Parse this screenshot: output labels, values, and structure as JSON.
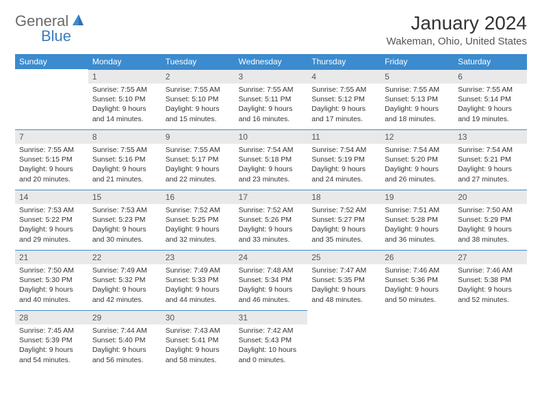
{
  "logo": {
    "general": "General",
    "blue": "Blue"
  },
  "title": "January 2024",
  "location": "Wakeman, Ohio, United States",
  "colors": {
    "header_bg": "#3b8bce",
    "header_text": "#ffffff",
    "daynum_bg": "#e9e9e9",
    "row_border": "#3b8bce",
    "text": "#333333",
    "logo_gray": "#6a6a6a",
    "logo_blue": "#3b7bbf"
  },
  "days_of_week": [
    "Sunday",
    "Monday",
    "Tuesday",
    "Wednesday",
    "Thursday",
    "Friday",
    "Saturday"
  ],
  "weeks": [
    [
      null,
      {
        "n": "1",
        "sr": "Sunrise: 7:55 AM",
        "ss": "Sunset: 5:10 PM",
        "dl": "Daylight: 9 hours and 14 minutes."
      },
      {
        "n": "2",
        "sr": "Sunrise: 7:55 AM",
        "ss": "Sunset: 5:10 PM",
        "dl": "Daylight: 9 hours and 15 minutes."
      },
      {
        "n": "3",
        "sr": "Sunrise: 7:55 AM",
        "ss": "Sunset: 5:11 PM",
        "dl": "Daylight: 9 hours and 16 minutes."
      },
      {
        "n": "4",
        "sr": "Sunrise: 7:55 AM",
        "ss": "Sunset: 5:12 PM",
        "dl": "Daylight: 9 hours and 17 minutes."
      },
      {
        "n": "5",
        "sr": "Sunrise: 7:55 AM",
        "ss": "Sunset: 5:13 PM",
        "dl": "Daylight: 9 hours and 18 minutes."
      },
      {
        "n": "6",
        "sr": "Sunrise: 7:55 AM",
        "ss": "Sunset: 5:14 PM",
        "dl": "Daylight: 9 hours and 19 minutes."
      }
    ],
    [
      {
        "n": "7",
        "sr": "Sunrise: 7:55 AM",
        "ss": "Sunset: 5:15 PM",
        "dl": "Daylight: 9 hours and 20 minutes."
      },
      {
        "n": "8",
        "sr": "Sunrise: 7:55 AM",
        "ss": "Sunset: 5:16 PM",
        "dl": "Daylight: 9 hours and 21 minutes."
      },
      {
        "n": "9",
        "sr": "Sunrise: 7:55 AM",
        "ss": "Sunset: 5:17 PM",
        "dl": "Daylight: 9 hours and 22 minutes."
      },
      {
        "n": "10",
        "sr": "Sunrise: 7:54 AM",
        "ss": "Sunset: 5:18 PM",
        "dl": "Daylight: 9 hours and 23 minutes."
      },
      {
        "n": "11",
        "sr": "Sunrise: 7:54 AM",
        "ss": "Sunset: 5:19 PM",
        "dl": "Daylight: 9 hours and 24 minutes."
      },
      {
        "n": "12",
        "sr": "Sunrise: 7:54 AM",
        "ss": "Sunset: 5:20 PM",
        "dl": "Daylight: 9 hours and 26 minutes."
      },
      {
        "n": "13",
        "sr": "Sunrise: 7:54 AM",
        "ss": "Sunset: 5:21 PM",
        "dl": "Daylight: 9 hours and 27 minutes."
      }
    ],
    [
      {
        "n": "14",
        "sr": "Sunrise: 7:53 AM",
        "ss": "Sunset: 5:22 PM",
        "dl": "Daylight: 9 hours and 29 minutes."
      },
      {
        "n": "15",
        "sr": "Sunrise: 7:53 AM",
        "ss": "Sunset: 5:23 PM",
        "dl": "Daylight: 9 hours and 30 minutes."
      },
      {
        "n": "16",
        "sr": "Sunrise: 7:52 AM",
        "ss": "Sunset: 5:25 PM",
        "dl": "Daylight: 9 hours and 32 minutes."
      },
      {
        "n": "17",
        "sr": "Sunrise: 7:52 AM",
        "ss": "Sunset: 5:26 PM",
        "dl": "Daylight: 9 hours and 33 minutes."
      },
      {
        "n": "18",
        "sr": "Sunrise: 7:52 AM",
        "ss": "Sunset: 5:27 PM",
        "dl": "Daylight: 9 hours and 35 minutes."
      },
      {
        "n": "19",
        "sr": "Sunrise: 7:51 AM",
        "ss": "Sunset: 5:28 PM",
        "dl": "Daylight: 9 hours and 36 minutes."
      },
      {
        "n": "20",
        "sr": "Sunrise: 7:50 AM",
        "ss": "Sunset: 5:29 PM",
        "dl": "Daylight: 9 hours and 38 minutes."
      }
    ],
    [
      {
        "n": "21",
        "sr": "Sunrise: 7:50 AM",
        "ss": "Sunset: 5:30 PM",
        "dl": "Daylight: 9 hours and 40 minutes."
      },
      {
        "n": "22",
        "sr": "Sunrise: 7:49 AM",
        "ss": "Sunset: 5:32 PM",
        "dl": "Daylight: 9 hours and 42 minutes."
      },
      {
        "n": "23",
        "sr": "Sunrise: 7:49 AM",
        "ss": "Sunset: 5:33 PM",
        "dl": "Daylight: 9 hours and 44 minutes."
      },
      {
        "n": "24",
        "sr": "Sunrise: 7:48 AM",
        "ss": "Sunset: 5:34 PM",
        "dl": "Daylight: 9 hours and 46 minutes."
      },
      {
        "n": "25",
        "sr": "Sunrise: 7:47 AM",
        "ss": "Sunset: 5:35 PM",
        "dl": "Daylight: 9 hours and 48 minutes."
      },
      {
        "n": "26",
        "sr": "Sunrise: 7:46 AM",
        "ss": "Sunset: 5:36 PM",
        "dl": "Daylight: 9 hours and 50 minutes."
      },
      {
        "n": "27",
        "sr": "Sunrise: 7:46 AM",
        "ss": "Sunset: 5:38 PM",
        "dl": "Daylight: 9 hours and 52 minutes."
      }
    ],
    [
      {
        "n": "28",
        "sr": "Sunrise: 7:45 AM",
        "ss": "Sunset: 5:39 PM",
        "dl": "Daylight: 9 hours and 54 minutes."
      },
      {
        "n": "29",
        "sr": "Sunrise: 7:44 AM",
        "ss": "Sunset: 5:40 PM",
        "dl": "Daylight: 9 hours and 56 minutes."
      },
      {
        "n": "30",
        "sr": "Sunrise: 7:43 AM",
        "ss": "Sunset: 5:41 PM",
        "dl": "Daylight: 9 hours and 58 minutes."
      },
      {
        "n": "31",
        "sr": "Sunrise: 7:42 AM",
        "ss": "Sunset: 5:43 PM",
        "dl": "Daylight: 10 hours and 0 minutes."
      },
      null,
      null,
      null
    ]
  ]
}
